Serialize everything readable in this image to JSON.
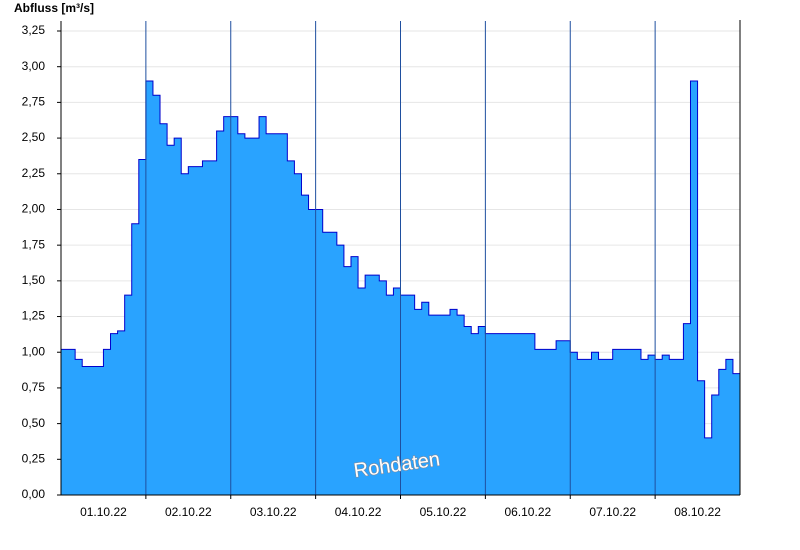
{
  "chart_data": {
    "type": "step-area",
    "y_label": "Abfluss [m³/s]",
    "annotation": "Rohdaten",
    "color": "#29a3ff",
    "line_color": "#0000cc",
    "grid": true,
    "categories": [
      null,
      null,
      null,
      null,
      null,
      null,
      "01.10.22",
      null,
      null,
      null,
      null,
      null,
      null,
      null,
      null,
      null,
      null,
      null,
      "02.10.22",
      null,
      null,
      null,
      null,
      null,
      null,
      null,
      null,
      null,
      null,
      null,
      "03.10.22",
      null,
      null,
      null,
      null,
      null,
      null,
      null,
      null,
      null,
      null,
      null,
      "04.10.22",
      null,
      null,
      null,
      null,
      null,
      null,
      null,
      null,
      null,
      null,
      null,
      "05.10.22",
      null,
      null,
      null,
      null,
      null,
      null,
      null,
      null,
      null,
      null,
      null,
      "06.10.22",
      null,
      null,
      null,
      null,
      null,
      null,
      null,
      null,
      null,
      null,
      null,
      "07.10.22",
      null,
      null,
      null,
      null,
      null,
      null,
      null,
      null,
      null,
      null,
      null,
      "08.10.22",
      null,
      null,
      null,
      null,
      null
    ],
    "values": [
      1.02,
      1.02,
      0.95,
      0.9,
      0.9,
      0.9,
      1.02,
      1.13,
      1.15,
      1.4,
      1.9,
      2.35,
      2.9,
      2.8,
      2.6,
      2.45,
      2.5,
      2.25,
      2.3,
      2.3,
      2.34,
      2.34,
      2.55,
      2.65,
      2.65,
      2.53,
      2.5,
      2.5,
      2.65,
      2.53,
      2.53,
      2.53,
      2.34,
      2.25,
      2.1,
      2.0,
      2.0,
      1.84,
      1.84,
      1.75,
      1.6,
      1.67,
      1.45,
      1.54,
      1.54,
      1.5,
      1.4,
      1.45,
      1.4,
      1.4,
      1.3,
      1.35,
      1.26,
      1.26,
      1.26,
      1.3,
      1.26,
      1.18,
      1.13,
      1.18,
      1.13,
      1.13,
      1.13,
      1.13,
      1.13,
      1.13,
      1.13,
      1.02,
      1.02,
      1.02,
      1.08,
      1.08,
      1.0,
      0.95,
      0.95,
      1.0,
      0.95,
      0.95,
      1.02,
      1.02,
      1.02,
      1.02,
      0.95,
      0.98,
      0.95,
      0.98,
      0.95,
      0.95,
      1.2,
      2.9,
      0.8,
      0.4,
      0.7,
      0.88,
      0.95,
      0.85
    ],
    "ylim": [
      0,
      3.25
    ],
    "yticks": [
      {
        "value": 0,
        "label": "0,00"
      },
      {
        "value": 0.25,
        "label": "0,25"
      },
      {
        "value": 0.5,
        "label": "0,50"
      },
      {
        "value": 0.75,
        "label": "0,75"
      },
      {
        "value": 1,
        "label": "1,00"
      },
      {
        "value": 1.25,
        "label": "1,25"
      },
      {
        "value": 1.5,
        "label": "1,50"
      },
      {
        "value": 1.75,
        "label": "1,75"
      },
      {
        "value": 2,
        "label": "2,00"
      },
      {
        "value": 2.25,
        "label": "2,25"
      },
      {
        "value": 2.5,
        "label": "2,50"
      },
      {
        "value": 2.75,
        "label": "2,75"
      },
      {
        "value": 3,
        "label": "3,00"
      },
      {
        "value": 3.25,
        "label": "3,25"
      }
    ]
  }
}
